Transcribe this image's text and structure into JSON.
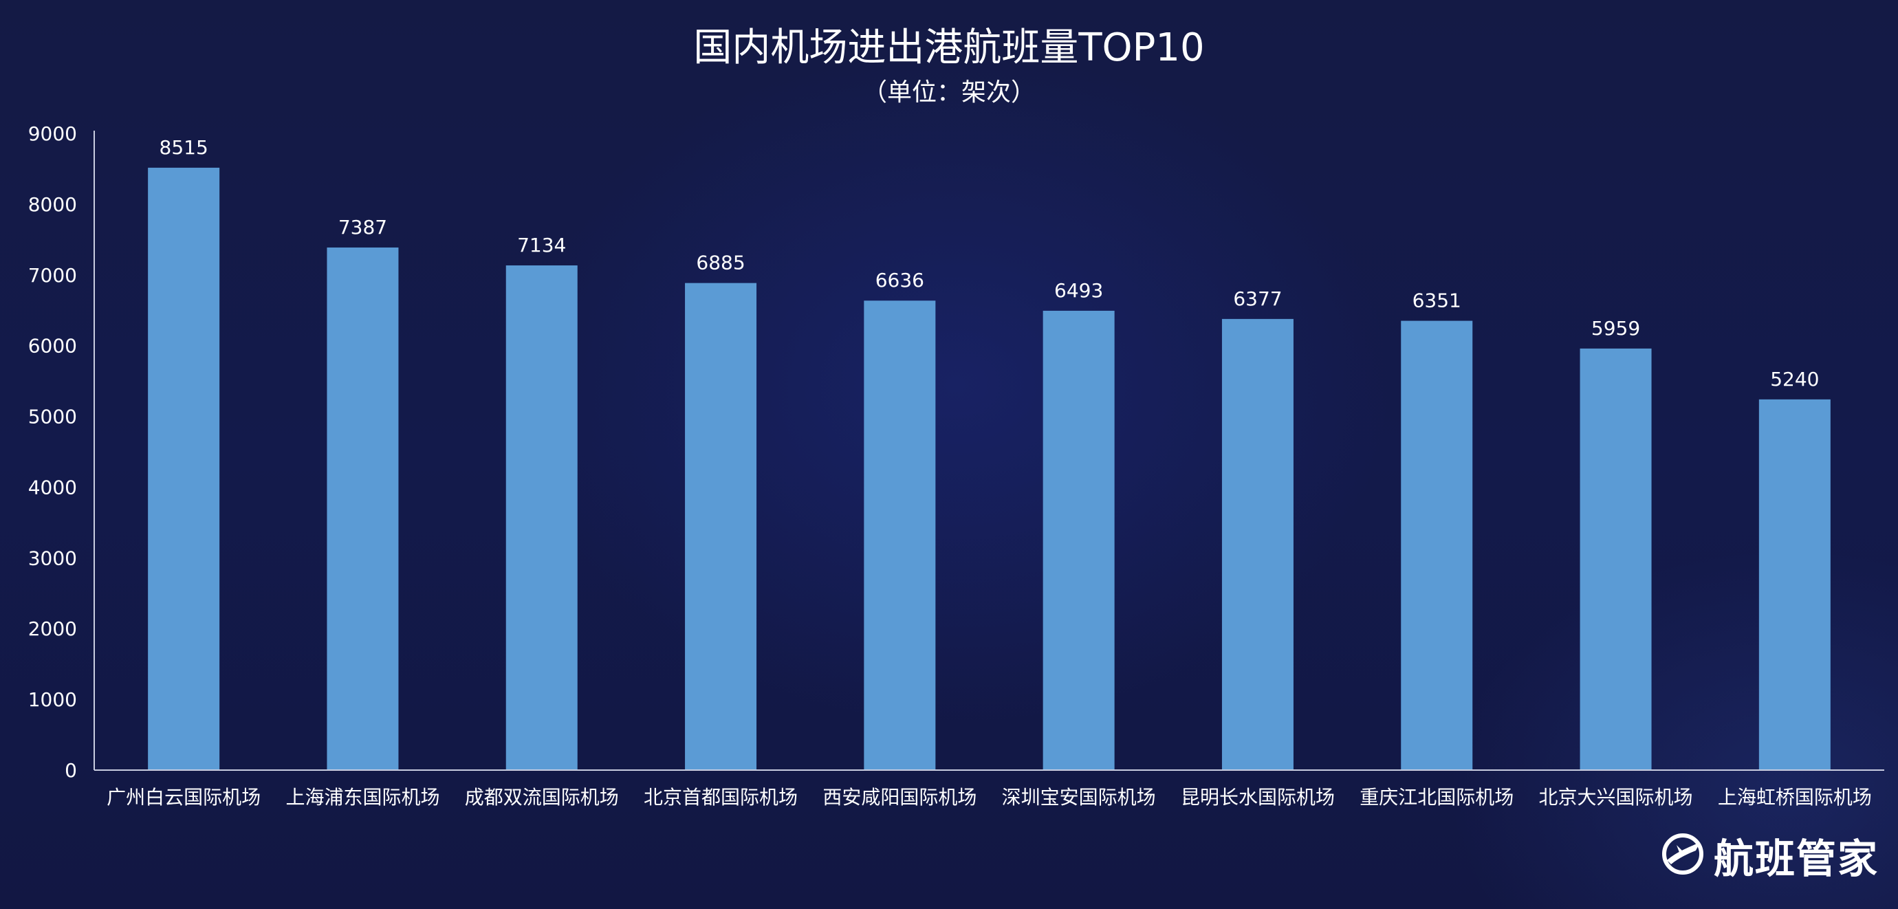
{
  "chart_data": {
    "type": "bar",
    "title": "国内机场进出港航班量TOP10",
    "subtitle": "（单位：架次）",
    "categories": [
      "广州白云国际机场",
      "上海浦东国际机场",
      "成都双流国际机场",
      "北京首都国际机场",
      "西安咸阳国际机场",
      "深圳宝安国际机场",
      "昆明长水国际机场",
      "重庆江北国际机场",
      "北京大兴国际机场",
      "上海虹桥国际机场"
    ],
    "values": [
      8515,
      7387,
      7134,
      6885,
      6636,
      6493,
      6377,
      6351,
      5959,
      5240
    ],
    "yticks": [
      "0",
      "1000",
      "2000",
      "3000",
      "4000",
      "5000",
      "6000",
      "7000",
      "8000",
      "9000"
    ],
    "ylim": [
      0,
      9000
    ],
    "grid": false,
    "bar_color": "#5b9bd5"
  },
  "brand": {
    "name": "航班管家",
    "icon": "brand-logo-icon"
  }
}
